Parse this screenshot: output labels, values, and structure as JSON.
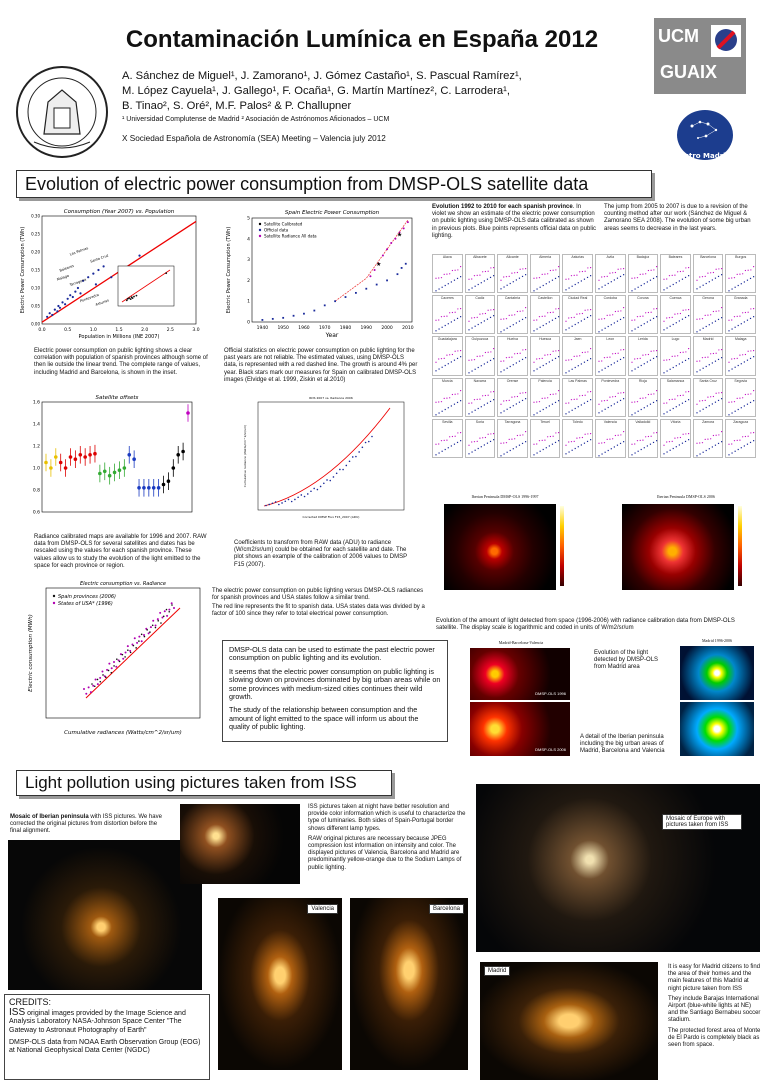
{
  "header": {
    "title": "Contaminación Lumínica en España 2012",
    "authors_line1": "A. Sánchez de Miguel¹, J. Zamorano¹,  J. Gómez Castaño¹, S. Pascual Ramírez¹,",
    "authors_line2": "M. López Cayuela¹, J. Gallego¹, F. Ocaña¹, G. Martín Martínez², C. Larrodera¹,",
    "authors_line3": "B. Tinao², S. Oré², M.F. Palos² & P. Challupner",
    "affiliations": "¹ Universidad Complutense de Madrid   ² Asociación de Astrónomos Aficionados – UCM",
    "meeting": "X Sociedad Española de Astronomía (SEA) Meeting – Valencia july 2012",
    "logo_ucm": "UCM",
    "logo_guaix": "GUAIX",
    "logo_astro": "Astro Madrid"
  },
  "section1": {
    "title": "Evolution of electric power consumption from DMSP-OLS satellite data"
  },
  "section2": {
    "title": "Light pollution using pictures taken from ISS"
  },
  "texts": {
    "pop_caption": "Electric power consumption on public lighting shows a clear correlation with population of spanish provinces although some of then lie outside the linear trend. The complete range of values, including Madrid and Barcelona, is shown in the inset.",
    "official_caption": "Official statistics on electric power consumption on public lighting for the past years are not reliable. The estimated values, using DMSP-OLS data,  is represented with a red dashed line. The growth is around 4% per year. Black stars mark our measures for Spain on calibrated DMSP-OLS images (Elvidge et al. 1999, Ziskin et al.2010)",
    "evol_bold": "Evolution 1992 to 2010 for each spanish province",
    "evol_text": "In violet we show an estimate of the electric power consumption on public lighting using DMSP-OLS data calibrated as shown in previous plots. Blue points represents official data on public lighting.",
    "jump_text": "The jump from 2005 to 2007 is due to a revision of the counting method after our work (Sánchez de Miguel & Zamorano SEA 2008). The evolution of some big urban areas seems to decrease in the last years.",
    "offsets_caption": "Radiance calibrated maps are available for 1996 and 2007. RAW data from DMSP-OLS for several satellites and dates has be rescaled using the values for each spanish province. These values allow us to study the evolution of the light emitted to the space for each province or region.",
    "coef_caption": "Coefficients to transform from RAW data (ADU) to radiance (W/cm2/sr/um) could be obtained for each satellite and date. The plot shows an example of the calibration of 2006 values to DMSP F15 (2007).",
    "elec_text1": "The electric power consumption on public lighting versus DMSP-OLS radiances for spanish provinces and USA states follow a similar trend.",
    "elec_text2": "The red line represents the fit to spanish data. USA states data was divided by a factor of 100 since they refer to total electrical power consumption.",
    "iberia_caption": "Evolution of the amount of light detected from space (1996-2006) with radiance calibration data from DMSP-OLS satellite. The display scale is logarithmic and coded in units of W/m2/sr/um",
    "box_p1": "DMSP-OLS data can be used to estimate the past electric power consumption on public lighting and its evolution.",
    "box_p2": "It seems that the electric power consumption on public lighting is slowing down on provinces dominated by big urban areas while on some provinces with medium-sized cities continues their wild growth.",
    "box_p3": "The study of the relationship between consumption and the amount of light emitted to the space will inform us about the quality of public lighting.",
    "madrid_evol": "Evolution of the light detected by DMSP-OLS from Madrid area",
    "detail_caption": "A detail of the Iberian peninsula including the big urban areas of Madrid, Barcelona and Valencia",
    "mosaic_bold": "Mosaic of Iberian peninsula",
    "mosaic_text": " with ISS pictures. We have corrected the original pictures from distortion before the final alignment.",
    "iss_p1": "ISS pictures taken at night have better resolution and provide color information which is useful to characterize the type of luminaries. Both sides of Spain-Portugal border shows different lamp types.",
    "iss_p2": "RAW original pictures are necessary because JPEG compression lost information on intensity and color. The displayed pictures of Valencia, Barcelona and Madrid are predominantly yellow-orange due to the Sodium Lamps of public lighting.",
    "europe_label": "Mosaic of Europe with pictures taken from ISS",
    "madrid_p1": "It is easy for Madrid citizens to find the area of their homes and the main features of this Madrid at night picture taken from ISS",
    "madrid_p2": "They include Barajas International Airport (blue-white lights at NE) and the Santiago Bernabeu soccer stadium.",
    "madrid_p3": "The protected forest area of Monte de El Pardo is completely black as seen from space."
  },
  "credits": {
    "title": "CREDITS:",
    "iss_big": "ISS",
    "iss_text": " original images provided by the  Image Science and Analysis Laboratory  NASA-Johnson Space Center \"The Gateway to Astronaut Photography of Earth\"",
    "dmsp_text": "DMSP-OLS data from NOAA Earth Observation Group (EOG) at National Geophysical Data Center (NGDC)"
  },
  "photo_labels": {
    "valencia": "Valencia",
    "barcelona": "Barcelona",
    "madrid": "Madrid",
    "iberia_1996": "Iberian Peninsula DMSP-OLS 1996-1997",
    "iberia_2006": "Iberian Peninsula DMSP-OLS 2006",
    "madrid_1996_2006": "Madrid 1996-2006",
    "mbv": "Madrid-Barcelona-Valencia",
    "dmsp1996": "DMSP-OLS 1996",
    "dmsp2006": "DMSP-OLS 2006"
  },
  "provinces": [
    "Alava",
    "Albacete",
    "Alicante",
    "Almeria",
    "Asturias",
    "Avila",
    "Badajoz",
    "Baleares",
    "Barcelona",
    "Burgos",
    "Caceres",
    "Cadiz",
    "Cantabria",
    "Castellon",
    "Ciudad Real",
    "Cordoba",
    "Coruna",
    "Cuenca",
    "Gerona",
    "Granada",
    "Guadalajara",
    "Guipuzcoa",
    "Huelva",
    "Huesca",
    "Jaen",
    "Leon",
    "Lerida",
    "Lugo",
    "Madrid",
    "Malaga",
    "Murcia",
    "Navarra",
    "Orense",
    "Palencia",
    "Las Palmas",
    "Pontevedra",
    "Rioja",
    "Salamanca",
    "Santa Cruz",
    "Segovia",
    "Sevilla",
    "Soria",
    "Tarragona",
    "Teruel",
    "Toledo",
    "Valencia",
    "Valladolid",
    "Vitoria",
    "Zamora",
    "Zaragoza"
  ],
  "chart_data": [
    {
      "type": "scatter",
      "title": "Consumption (Year 2007) vs. Population",
      "xlabel": "Population in Millions (INE 2007)",
      "ylabel": "Electric Power Consumption (TWh)",
      "xlim": [
        0,
        3.0
      ],
      "ylim": [
        0,
        0.3
      ],
      "xticks": [
        "0.0",
        "0.5",
        "1.0",
        "1.5",
        "2.0",
        "2.5",
        "3.0"
      ],
      "yticks": [
        "0.00",
        "0.05",
        "0.10",
        "0.15",
        "0.20",
        "0.25",
        "0.30"
      ],
      "annotations": [
        "Las Palmas",
        "Santa Cruz",
        "Baleares",
        "Malaga",
        "Tarragona",
        "Murcia",
        "Pontevedra",
        "Asturias"
      ],
      "x": [
        0.1,
        0.15,
        0.2,
        0.25,
        0.3,
        0.32,
        0.35,
        0.4,
        0.45,
        0.5,
        0.55,
        0.6,
        0.65,
        0.7,
        0.75,
        0.8,
        0.9,
        1.0,
        1.05,
        1.1,
        1.2,
        1.35,
        1.5,
        1.6,
        1.9
      ],
      "y": [
        0.02,
        0.03,
        0.025,
        0.04,
        0.035,
        0.05,
        0.045,
        0.06,
        0.055,
        0.07,
        0.08,
        0.075,
        0.09,
        0.1,
        0.085,
        0.12,
        0.13,
        0.14,
        0.11,
        0.15,
        0.16,
        0.13,
        0.15,
        0.14,
        0.19
      ]
    },
    {
      "type": "line",
      "title": "Spain Electric Power Consumption",
      "xlabel": "Year",
      "ylabel": "Electric Power Consumption (TWh)",
      "xlim": [
        1935,
        2012
      ],
      "ylim": [
        0,
        5
      ],
      "xticks": [
        "1940",
        "1950",
        "1960",
        "1970",
        "1980",
        "1990",
        "2000",
        "2010"
      ],
      "yticks": [
        "0",
        "1",
        "2",
        "3",
        "4",
        "5"
      ],
      "legend": [
        "Satellite Calibrated",
        "Official data",
        "Satellite Radiance All data"
      ],
      "series": [
        {
          "name": "Official data",
          "x": [
            1940,
            1945,
            1950,
            1955,
            1960,
            1965,
            1970,
            1975,
            1980,
            1985,
            1990,
            1995,
            2000,
            2005,
            2007,
            2009
          ],
          "y": [
            0.1,
            0.15,
            0.2,
            0.3,
            0.4,
            0.55,
            0.8,
            1.0,
            1.2,
            1.4,
            1.6,
            1.8,
            2.0,
            2.3,
            2.6,
            2.8
          ]
        },
        {
          "name": "Satellite Radiance All data",
          "x": [
            1992,
            1994,
            1996,
            1998,
            2000,
            2002,
            2004,
            2006,
            2008,
            2010
          ],
          "y": [
            2.2,
            2.5,
            2.8,
            3.2,
            3.5,
            3.8,
            4.0,
            4.3,
            4.5,
            4.8
          ]
        }
      ]
    },
    {
      "type": "scatter",
      "title": "Satellite offsets",
      "ylim": [
        0.6,
        1.6
      ],
      "yticks": [
        "0.6",
        "0.8",
        "1.0",
        "1.2",
        "1.4",
        "1.6"
      ],
      "values": [
        1.05,
        1.0,
        1.1,
        1.05,
        1.0,
        1.1,
        1.08,
        1.12,
        1.1,
        1.12,
        1.13,
        0.95,
        0.97,
        0.93,
        0.96,
        0.98,
        1.0,
        1.12,
        1.08,
        0.82,
        0.82,
        0.82,
        0.82,
        0.82,
        0.85,
        0.88,
        1.0,
        1.12,
        1.15,
        1.5
      ]
    },
    {
      "type": "scatter",
      "title": "Electric consumption vs. Radiance",
      "xlabel": "Cumulative radiances (Watts/cm^2/sr/um)",
      "ylabel": "Electric consumption (MWh)",
      "legend": [
        "Spain provinces (2006)",
        "States of USA* (1996)"
      ]
    },
    {
      "type": "scatter",
      "title": "RDS 2007 vs. Radiance 2006",
      "xlabel": "Corrected DMSP Flux F15_2007 (ADU)",
      "ylabel": "Cumulative radiance (Watts/cm^2/sr/um)"
    }
  ]
}
